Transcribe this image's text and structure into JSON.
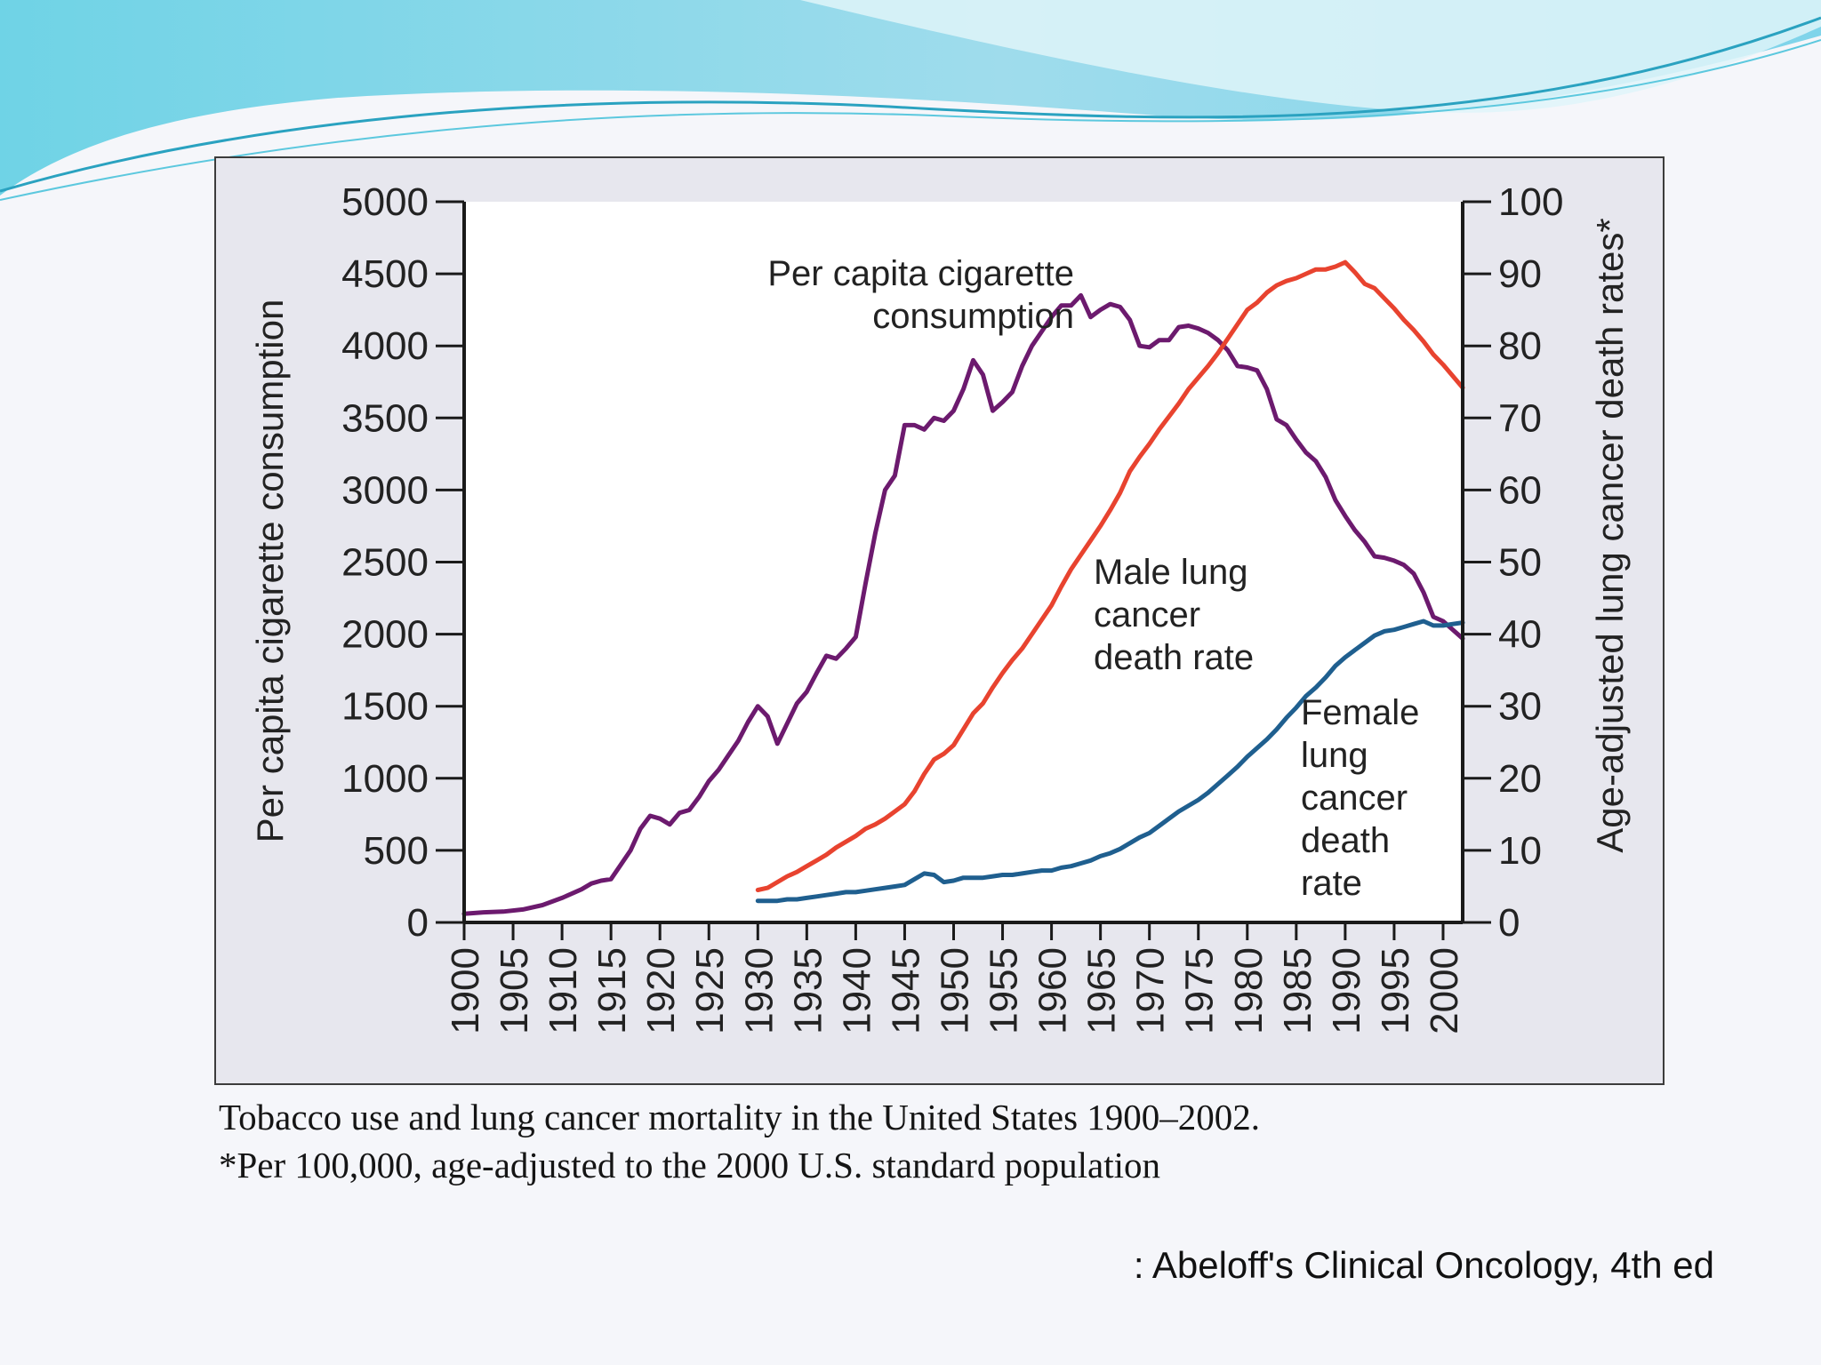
{
  "slide": {
    "caption_line1": "Tobacco use and lung cancer mortality in the United States 1900–2002.",
    "caption_line2": "*Per 100,000, age-adjusted to the 2000 U.S. standard population",
    "source": ": Abeloff's Clinical Oncology, 4th ed",
    "colors": {
      "header_wave_light": "#bfeaf5",
      "header_wave_dark": "#5ad0e6",
      "accent": "#3aa7c9"
    }
  },
  "chart_data": {
    "type": "line",
    "title": "",
    "xlabel": "",
    "ylabel_left": "Per capita cigarette consumption",
    "ylabel_right": "Age-adjusted lung cancer death rates*",
    "xlim": [
      1900,
      2002
    ],
    "ylim_left": [
      0,
      5000
    ],
    "ylim_right": [
      0,
      100
    ],
    "x_ticks": [
      1900,
      1905,
      1910,
      1915,
      1920,
      1925,
      1930,
      1935,
      1940,
      1945,
      1950,
      1955,
      1960,
      1965,
      1970,
      1975,
      1980,
      1985,
      1990,
      1995,
      2000
    ],
    "y_ticks_left": [
      0,
      500,
      1000,
      1500,
      2000,
      2500,
      3000,
      3500,
      4000,
      4500,
      5000
    ],
    "y_ticks_right": [
      0,
      10,
      20,
      30,
      40,
      50,
      60,
      70,
      80,
      90,
      100
    ],
    "grid": false,
    "legend": "none (inline labels)",
    "series": [
      {
        "name": "Per capita cigarette consumption",
        "axis": "left",
        "color": "#6c1a6e",
        "label_lines": [
          "Per capita cigarette",
          "consumption"
        ],
        "points": [
          [
            1900,
            60
          ],
          [
            1902,
            70
          ],
          [
            1904,
            75
          ],
          [
            1906,
            90
          ],
          [
            1908,
            120
          ],
          [
            1910,
            170
          ],
          [
            1912,
            230
          ],
          [
            1913,
            270
          ],
          [
            1914,
            290
          ],
          [
            1915,
            300
          ],
          [
            1916,
            400
          ],
          [
            1917,
            500
          ],
          [
            1918,
            650
          ],
          [
            1919,
            740
          ],
          [
            1920,
            720
          ],
          [
            1921,
            680
          ],
          [
            1922,
            760
          ],
          [
            1923,
            780
          ],
          [
            1924,
            870
          ],
          [
            1925,
            980
          ],
          [
            1926,
            1060
          ],
          [
            1927,
            1160
          ],
          [
            1928,
            1260
          ],
          [
            1929,
            1390
          ],
          [
            1930,
            1500
          ],
          [
            1931,
            1430
          ],
          [
            1932,
            1240
          ],
          [
            1933,
            1380
          ],
          [
            1934,
            1520
          ],
          [
            1935,
            1600
          ],
          [
            1936,
            1730
          ],
          [
            1937,
            1850
          ],
          [
            1938,
            1830
          ],
          [
            1939,
            1900
          ],
          [
            1940,
            1980
          ],
          [
            1941,
            2350
          ],
          [
            1942,
            2700
          ],
          [
            1943,
            3000
          ],
          [
            1944,
            3100
          ],
          [
            1945,
            3450
          ],
          [
            1946,
            3450
          ],
          [
            1947,
            3420
          ],
          [
            1948,
            3500
          ],
          [
            1949,
            3480
          ],
          [
            1950,
            3550
          ],
          [
            1951,
            3700
          ],
          [
            1952,
            3900
          ],
          [
            1953,
            3800
          ],
          [
            1954,
            3550
          ],
          [
            1955,
            3610
          ],
          [
            1956,
            3680
          ],
          [
            1957,
            3860
          ],
          [
            1958,
            4000
          ],
          [
            1959,
            4100
          ],
          [
            1960,
            4200
          ],
          [
            1961,
            4280
          ],
          [
            1962,
            4280
          ],
          [
            1963,
            4350
          ],
          [
            1964,
            4200
          ],
          [
            1965,
            4250
          ],
          [
            1966,
            4290
          ],
          [
            1967,
            4270
          ],
          [
            1968,
            4180
          ],
          [
            1969,
            4000
          ],
          [
            1970,
            3990
          ],
          [
            1971,
            4040
          ],
          [
            1972,
            4040
          ],
          [
            1973,
            4130
          ],
          [
            1974,
            4140
          ],
          [
            1975,
            4120
          ],
          [
            1976,
            4090
          ],
          [
            1977,
            4040
          ],
          [
            1978,
            3970
          ],
          [
            1979,
            3860
          ],
          [
            1980,
            3850
          ],
          [
            1981,
            3830
          ],
          [
            1982,
            3700
          ],
          [
            1983,
            3490
          ],
          [
            1984,
            3450
          ],
          [
            1985,
            3350
          ],
          [
            1986,
            3260
          ],
          [
            1987,
            3200
          ],
          [
            1988,
            3090
          ],
          [
            1989,
            2930
          ],
          [
            1990,
            2820
          ],
          [
            1991,
            2720
          ],
          [
            1992,
            2640
          ],
          [
            1993,
            2540
          ],
          [
            1994,
            2530
          ],
          [
            1995,
            2510
          ],
          [
            1996,
            2480
          ],
          [
            1997,
            2420
          ],
          [
            1998,
            2290
          ],
          [
            1999,
            2120
          ],
          [
            2000,
            2090
          ],
          [
            2001,
            2030
          ],
          [
            2002,
            1970
          ]
        ]
      },
      {
        "name": "Male lung cancer death rate",
        "axis": "right",
        "color": "#e8432f",
        "label_lines": [
          "Male lung",
          "cancer",
          "death rate"
        ],
        "points": [
          [
            1930,
            4.5
          ],
          [
            1931,
            4.8
          ],
          [
            1932,
            5.6
          ],
          [
            1933,
            6.4
          ],
          [
            1934,
            7
          ],
          [
            1935,
            7.8
          ],
          [
            1936,
            8.6
          ],
          [
            1937,
            9.4
          ],
          [
            1938,
            10.4
          ],
          [
            1939,
            11.2
          ],
          [
            1940,
            12
          ],
          [
            1941,
            13
          ],
          [
            1942,
            13.6
          ],
          [
            1943,
            14.4
          ],
          [
            1944,
            15.4
          ],
          [
            1945,
            16.4
          ],
          [
            1946,
            18.2
          ],
          [
            1947,
            20.6
          ],
          [
            1948,
            22.6
          ],
          [
            1949,
            23.4
          ],
          [
            1950,
            24.6
          ],
          [
            1951,
            26.8
          ],
          [
            1952,
            29
          ],
          [
            1953,
            30.4
          ],
          [
            1954,
            32.6
          ],
          [
            1955,
            34.6
          ],
          [
            1956,
            36.4
          ],
          [
            1957,
            38
          ],
          [
            1958,
            40
          ],
          [
            1959,
            42
          ],
          [
            1960,
            44
          ],
          [
            1961,
            46.6
          ],
          [
            1962,
            49
          ],
          [
            1963,
            51
          ],
          [
            1964,
            53
          ],
          [
            1965,
            55
          ],
          [
            1966,
            57.2
          ],
          [
            1967,
            59.6
          ],
          [
            1968,
            62.6
          ],
          [
            1969,
            64.6
          ],
          [
            1970,
            66.4
          ],
          [
            1971,
            68.4
          ],
          [
            1972,
            70.2
          ],
          [
            1973,
            72
          ],
          [
            1974,
            74
          ],
          [
            1975,
            75.6
          ],
          [
            1976,
            77.2
          ],
          [
            1977,
            79
          ],
          [
            1978,
            81
          ],
          [
            1979,
            83
          ],
          [
            1980,
            85
          ],
          [
            1981,
            86
          ],
          [
            1982,
            87.4
          ],
          [
            1983,
            88.4
          ],
          [
            1984,
            89
          ],
          [
            1985,
            89.4
          ],
          [
            1986,
            90
          ],
          [
            1987,
            90.6
          ],
          [
            1988,
            90.6
          ],
          [
            1989,
            91
          ],
          [
            1990,
            91.6
          ],
          [
            1991,
            90.2
          ],
          [
            1992,
            88.6
          ],
          [
            1993,
            88
          ],
          [
            1994,
            86.6
          ],
          [
            1995,
            85.2
          ],
          [
            1996,
            83.6
          ],
          [
            1997,
            82.2
          ],
          [
            1998,
            80.6
          ],
          [
            1999,
            78.8
          ],
          [
            2000,
            77.4
          ],
          [
            2001,
            75.8
          ],
          [
            2002,
            74.2
          ]
        ]
      },
      {
        "name": "Female lung cancer death rate",
        "axis": "right",
        "color": "#1f5f8f",
        "label_lines": [
          "Female",
          "lung",
          "cancer",
          "death",
          "rate"
        ],
        "points": [
          [
            1930,
            3
          ],
          [
            1931,
            3
          ],
          [
            1932,
            3
          ],
          [
            1933,
            3.2
          ],
          [
            1934,
            3.2
          ],
          [
            1935,
            3.4
          ],
          [
            1936,
            3.6
          ],
          [
            1937,
            3.8
          ],
          [
            1938,
            4
          ],
          [
            1939,
            4.2
          ],
          [
            1940,
            4.2
          ],
          [
            1941,
            4.4
          ],
          [
            1942,
            4.6
          ],
          [
            1943,
            4.8
          ],
          [
            1944,
            5
          ],
          [
            1945,
            5.2
          ],
          [
            1946,
            6
          ],
          [
            1947,
            6.8
          ],
          [
            1948,
            6.6
          ],
          [
            1949,
            5.6
          ],
          [
            1950,
            5.8
          ],
          [
            1951,
            6.2
          ],
          [
            1952,
            6.2
          ],
          [
            1953,
            6.2
          ],
          [
            1954,
            6.4
          ],
          [
            1955,
            6.6
          ],
          [
            1956,
            6.6
          ],
          [
            1957,
            6.8
          ],
          [
            1958,
            7
          ],
          [
            1959,
            7.2
          ],
          [
            1960,
            7.2
          ],
          [
            1961,
            7.6
          ],
          [
            1962,
            7.8
          ],
          [
            1963,
            8.2
          ],
          [
            1964,
            8.6
          ],
          [
            1965,
            9.2
          ],
          [
            1966,
            9.6
          ],
          [
            1967,
            10.2
          ],
          [
            1968,
            11
          ],
          [
            1969,
            11.8
          ],
          [
            1970,
            12.4
          ],
          [
            1971,
            13.4
          ],
          [
            1972,
            14.4
          ],
          [
            1973,
            15.4
          ],
          [
            1974,
            16.2
          ],
          [
            1975,
            17
          ],
          [
            1976,
            18
          ],
          [
            1977,
            19.2
          ],
          [
            1978,
            20.4
          ],
          [
            1979,
            21.6
          ],
          [
            1980,
            23
          ],
          [
            1981,
            24.2
          ],
          [
            1982,
            25.4
          ],
          [
            1983,
            26.8
          ],
          [
            1984,
            28.4
          ],
          [
            1985,
            29.8
          ],
          [
            1986,
            31.4
          ],
          [
            1987,
            32.6
          ],
          [
            1988,
            34
          ],
          [
            1989,
            35.6
          ],
          [
            1990,
            36.8
          ],
          [
            1991,
            37.8
          ],
          [
            1992,
            38.8
          ],
          [
            1993,
            39.8
          ],
          [
            1994,
            40.4
          ],
          [
            1995,
            40.6
          ],
          [
            1996,
            41
          ],
          [
            1997,
            41.4
          ],
          [
            1998,
            41.8
          ],
          [
            1999,
            41.2
          ],
          [
            2000,
            41.2
          ],
          [
            2001,
            41.4
          ],
          [
            2002,
            41.6
          ]
        ]
      }
    ]
  }
}
